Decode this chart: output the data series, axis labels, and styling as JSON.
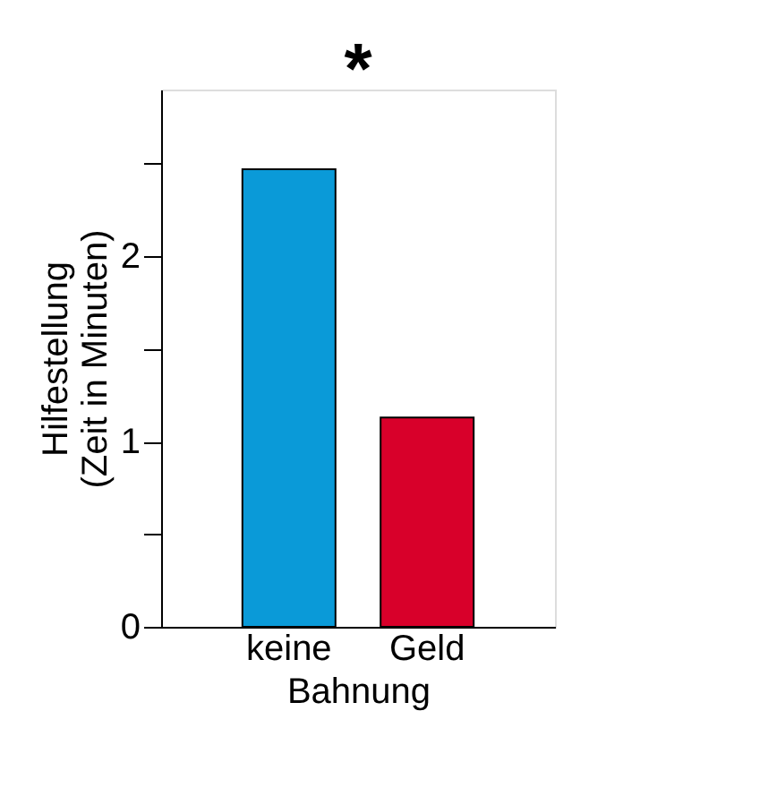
{
  "chart_data": {
    "type": "bar",
    "xlabel": "Bahnung",
    "ylabel": "Hilfestellung\n(Zeit in Minuten)",
    "categories": [
      "keine",
      "Geld"
    ],
    "values": [
      2.47,
      1.13
    ],
    "colors": [
      "#0a9ad8",
      "#d8002a"
    ],
    "ylim": [
      0,
      2.9
    ],
    "yticks": [
      0,
      {
        "value": 0.5,
        "label": null
      },
      1,
      {
        "value": 1.5,
        "label": null
      },
      2,
      {
        "value": 2.5,
        "label": null
      }
    ],
    "annotations": [
      "*"
    ],
    "grid": false
  }
}
